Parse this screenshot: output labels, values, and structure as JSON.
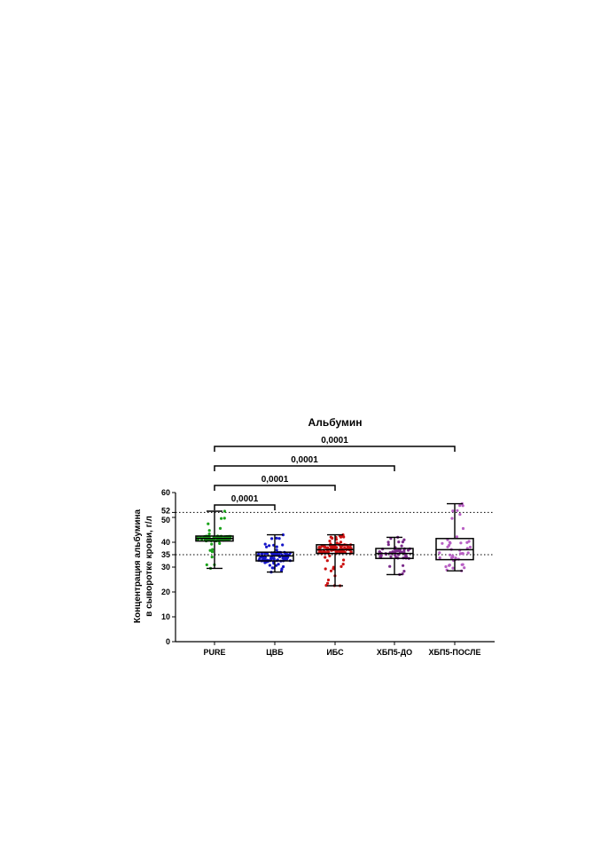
{
  "chart_data": {
    "type": "box",
    "title": "Альбумин",
    "ylabel_line1": "Концентрация альбумина",
    "ylabel_line2": "в сыворотке крови, г/л",
    "ylim": [
      0,
      60
    ],
    "yticks": [
      0,
      10,
      20,
      30,
      35,
      40,
      50,
      52,
      60
    ],
    "reference_lines": [
      35,
      52
    ],
    "categories": [
      "PURE",
      "ЦВБ",
      "ИБС",
      "ХБП5-ДО",
      "ХБП5-ПОСЛЕ"
    ],
    "colors": [
      "#1aa31a",
      "#1515c8",
      "#cc1111",
      "#7a2a8a",
      "#b85fc4"
    ],
    "groups": [
      {
        "name": "PURE",
        "min": 29.5,
        "q1": 40.5,
        "median": 41.5,
        "q3": 42.5,
        "max": 52.5,
        "n": 90
      },
      {
        "name": "ЦВБ",
        "min": 28.0,
        "q1": 32.5,
        "median": 34.5,
        "q3": 36.0,
        "max": 43.0,
        "n": 95
      },
      {
        "name": "ИБС",
        "min": 22.5,
        "q1": 35.5,
        "median": 37.0,
        "q3": 39.0,
        "max": 43.0,
        "n": 110
      },
      {
        "name": "ХБП5-ДО",
        "min": 27.0,
        "q1": 33.5,
        "median": 35.5,
        "q3": 37.5,
        "max": 42.0,
        "n": 55
      },
      {
        "name": "ХБП5-ПОСЛЕ",
        "min": 28.5,
        "q1": 33.0,
        "median": 37.0,
        "q3": 41.5,
        "max": 55.5,
        "n": 45
      }
    ],
    "comparisons": [
      {
        "from": "PURE",
        "to": "ЦВБ",
        "p": "0,0001"
      },
      {
        "from": "PURE",
        "to": "ИБС",
        "p": "0,0001"
      },
      {
        "from": "PURE",
        "to": "ХБП5-ДО",
        "p": "0,0001"
      },
      {
        "from": "PURE",
        "to": "ХБП5-ПОСЛЕ",
        "p": "0,0001"
      }
    ]
  }
}
